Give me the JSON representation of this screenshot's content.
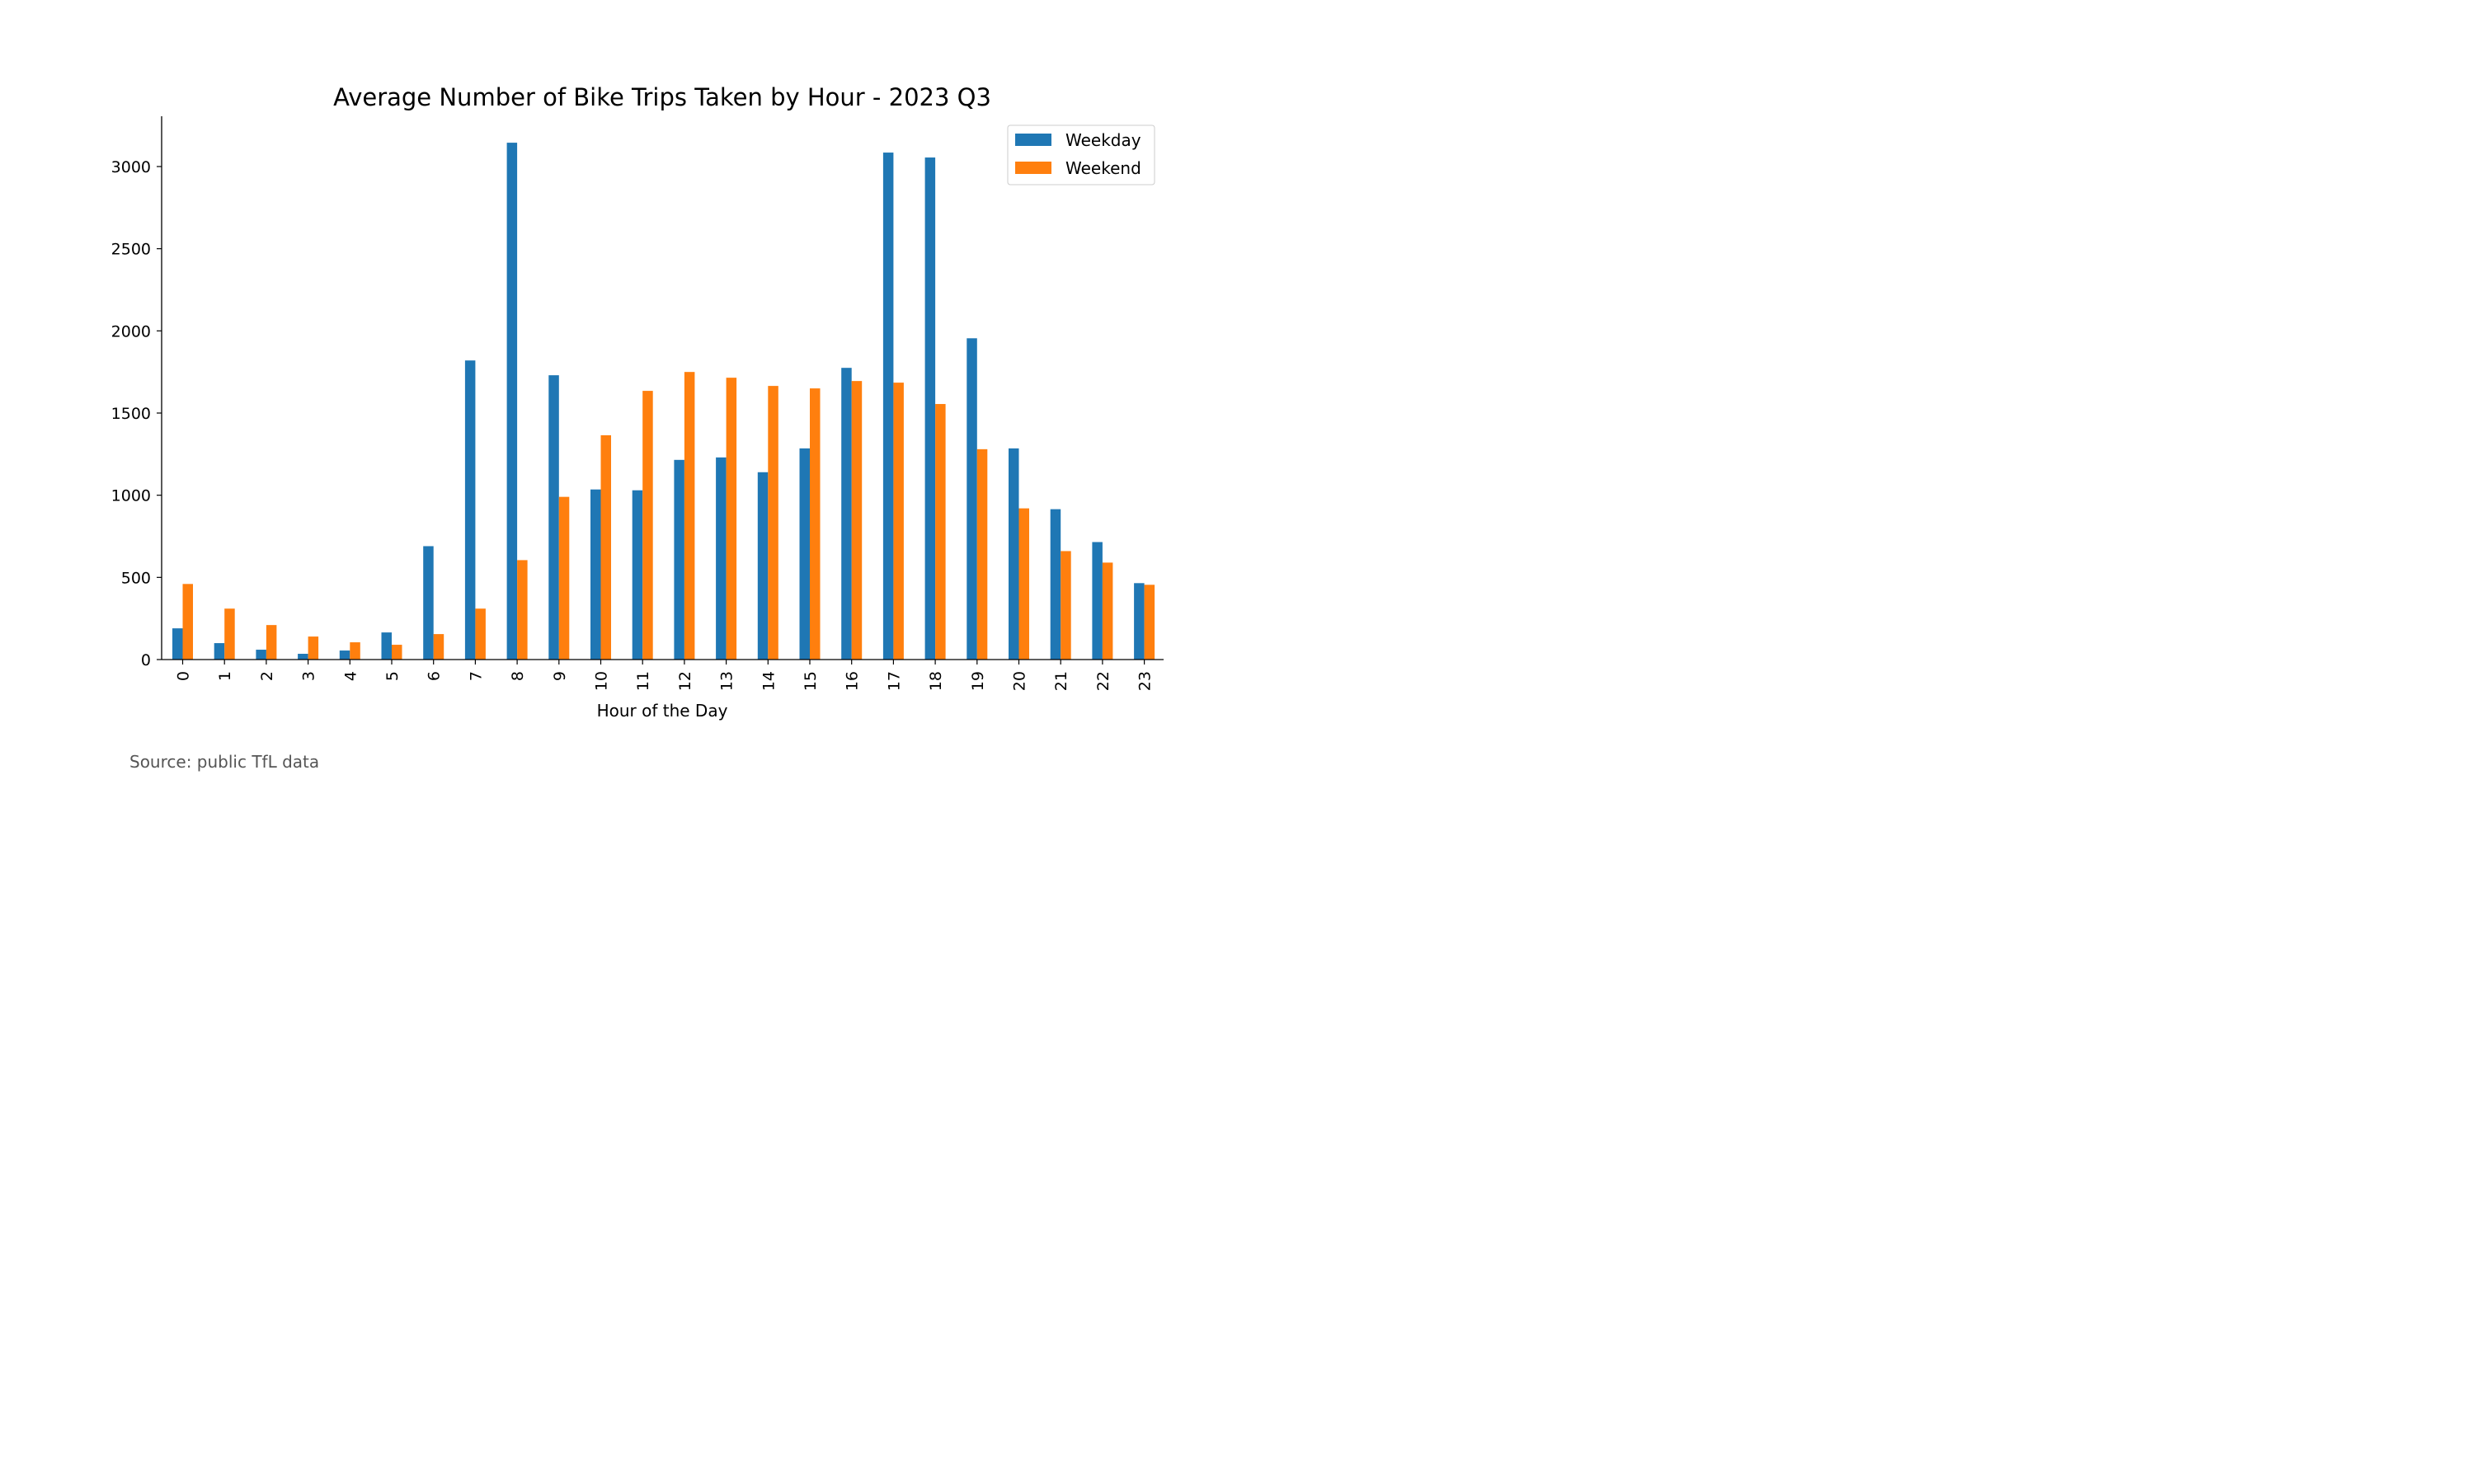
{
  "chart_data": {
    "type": "bar",
    "title": "Average Number of Bike Trips Taken by Hour - 2023 Q3",
    "xlabel": "Hour of the Day",
    "ylabel": "",
    "categories": [
      "0",
      "1",
      "2",
      "3",
      "4",
      "5",
      "6",
      "7",
      "8",
      "9",
      "10",
      "11",
      "12",
      "13",
      "14",
      "15",
      "16",
      "17",
      "18",
      "19",
      "20",
      "21",
      "22",
      "23"
    ],
    "series": [
      {
        "name": "Weekday",
        "color": "#1f77b4",
        "values": [
          190,
          100,
          60,
          35,
          55,
          165,
          690,
          1820,
          3145,
          1730,
          1035,
          1030,
          1215,
          1230,
          1140,
          1285,
          1775,
          3085,
          3055,
          1955,
          1285,
          915,
          715,
          465
        ]
      },
      {
        "name": "Weekend",
        "color": "#ff7f0e",
        "values": [
          460,
          310,
          210,
          140,
          105,
          90,
          155,
          310,
          605,
          990,
          1365,
          1635,
          1750,
          1715,
          1665,
          1650,
          1695,
          1685,
          1555,
          1280,
          920,
          660,
          590,
          455
        ]
      }
    ],
    "ylim": [
      0,
      3300
    ],
    "yticks": [
      0,
      500,
      1000,
      1500,
      2000,
      2500,
      3000
    ],
    "grid": false,
    "legend_position": "top-right"
  },
  "source_note": "Source: public TfL data"
}
